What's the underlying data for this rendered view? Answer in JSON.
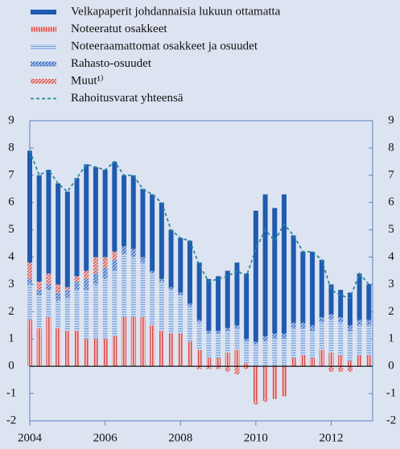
{
  "chart_data": {
    "type": "bar",
    "stacked": true,
    "x": [
      2004,
      2004.25,
      2004.5,
      2004.75,
      2005,
      2005.25,
      2005.5,
      2005.75,
      2006,
      2006.25,
      2006.5,
      2006.75,
      2007,
      2007.25,
      2007.5,
      2007.75,
      2008,
      2008.25,
      2008.5,
      2008.75,
      2009,
      2009.25,
      2009.5,
      2009.75,
      2010,
      2010.25,
      2010.5,
      2010.75,
      2011,
      2011.25,
      2011.5,
      2011.75,
      2012,
      2012.25,
      2012.5,
      2012.75,
      2013
    ],
    "xlim": [
      2004,
      2013.1
    ],
    "xticks": [
      2004,
      2006,
      2008,
      2010,
      2012
    ],
    "ylim": [
      -2,
      9
    ],
    "yticks": [
      -2,
      -1,
      0,
      1,
      2,
      3,
      4,
      5,
      6,
      7,
      8,
      9
    ],
    "y2lim": [
      -2,
      9
    ],
    "y2ticks": [
      -2,
      -1,
      0,
      1,
      2,
      3,
      4,
      5,
      6,
      7,
      8,
      9
    ],
    "series": [
      {
        "name": "Velkapaperit johdannaisia lukuun ottamatta",
        "color": "#1f5bb0",
        "pattern": "solid",
        "values": [
          4.1,
          3.9,
          3.8,
          3.7,
          3.5,
          3.6,
          3.9,
          3.3,
          3.2,
          3.3,
          2.6,
          2.7,
          2.5,
          2.8,
          2.8,
          2.1,
          2.0,
          2.3,
          2.1,
          1.9,
          2.0,
          2.1,
          2.3,
          2.4,
          4.8,
          5.2,
          4.6,
          5.1,
          3.2,
          2.6,
          2.7,
          2.1,
          1.1,
          1.0,
          1.2,
          1.7,
          1.3
        ]
      },
      {
        "name": "Noteeratut osakkeet",
        "color": "#e07a7a",
        "pattern": "vertical",
        "values": [
          1.7,
          1.4,
          1.8,
          1.4,
          1.3,
          1.3,
          1.0,
          1.0,
          1.0,
          1.1,
          1.8,
          1.8,
          1.8,
          1.5,
          1.3,
          1.2,
          1.2,
          0.9,
          0.6,
          0.3,
          0.3,
          0.5,
          0.6,
          0.1,
          -1.3,
          -1.2,
          -1.2,
          -1.1,
          0.3,
          0.4,
          0.3,
          0.6,
          0.5,
          0.4,
          0.2,
          0.4,
          0.4
        ]
      },
      {
        "name": "Noteeraamattomat osakkeet ja osuudet",
        "color": "#9dbde6",
        "pattern": "horizontal",
        "values": [
          1.3,
          1.2,
          1.0,
          1.0,
          1.2,
          1.5,
          1.8,
          2.0,
          2.2,
          2.4,
          2.3,
          2.2,
          2.0,
          1.9,
          1.8,
          1.6,
          1.4,
          1.3,
          1.0,
          0.9,
          0.9,
          0.8,
          0.8,
          0.8,
          0.8,
          0.9,
          1.0,
          1.0,
          1.1,
          1.0,
          1.0,
          1.0,
          1.2,
          1.2,
          1.1,
          1.1,
          1.1
        ]
      },
      {
        "name": "Rahasto-osuudet",
        "color": "#5f8fd6",
        "pattern": "diagonal",
        "values": [
          0.2,
          0.2,
          0.2,
          0.3,
          0.3,
          0.3,
          0.4,
          0.4,
          0.4,
          0.4,
          0.3,
          0.3,
          0.2,
          0.1,
          0.1,
          0.1,
          0.1,
          0.1,
          0.1,
          0.1,
          0.1,
          0.1,
          0.1,
          0.1,
          0.1,
          0.2,
          0.2,
          0.2,
          0.2,
          0.2,
          0.2,
          0.2,
          0.2,
          0.2,
          0.2,
          0.2,
          0.2
        ]
      },
      {
        "name": "Muut¹⁾",
        "color": "#d98a8a",
        "pattern": "diagonal",
        "values": [
          0.6,
          0.3,
          0.4,
          0.3,
          0.1,
          0.2,
          0.3,
          0.6,
          0.4,
          0.3,
          0,
          0,
          0,
          0,
          0,
          0,
          0,
          0,
          -0.1,
          -0.1,
          -0.1,
          -0.2,
          -0.3,
          -0.1,
          -0.1,
          -0.1,
          0,
          0,
          0,
          0,
          0,
          0,
          -0.2,
          -0.2,
          -0.2,
          0,
          0
        ]
      },
      {
        "name": "Rahoitusvarat yhteensä",
        "color": "#2a8a9e",
        "type": "line",
        "dash": true,
        "values": [
          7.9,
          7.0,
          7.2,
          6.7,
          6.4,
          6.9,
          7.4,
          7.3,
          7.2,
          7.5,
          7.0,
          7.0,
          6.5,
          6.3,
          6.0,
          5.0,
          4.7,
          4.6,
          3.7,
          3.1,
          3.2,
          3.3,
          3.5,
          3.3,
          4.3,
          5.0,
          4.6,
          5.2,
          4.8,
          4.2,
          4.2,
          3.9,
          2.8,
          2.6,
          2.5,
          3.4,
          3.0
        ]
      }
    ],
    "stack_order": [
      1,
      2,
      3,
      4,
      0
    ]
  }
}
